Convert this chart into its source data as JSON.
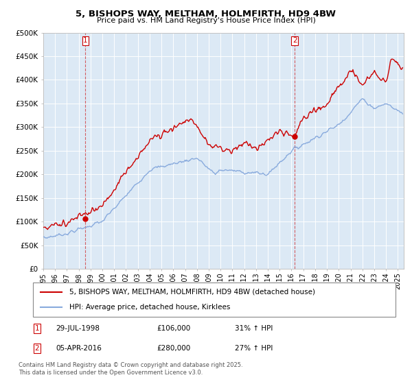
{
  "title_line1": "5, BISHOPS WAY, MELTHAM, HOLMFIRTH, HD9 4BW",
  "title_line2": "Price paid vs. HM Land Registry's House Price Index (HPI)",
  "ylim": [
    0,
    500000
  ],
  "yticks": [
    0,
    50000,
    100000,
    150000,
    200000,
    250000,
    300000,
    350000,
    400000,
    450000,
    500000
  ],
  "ytick_labels": [
    "£0",
    "£50K",
    "£100K",
    "£150K",
    "£200K",
    "£250K",
    "£300K",
    "£350K",
    "£400K",
    "£450K",
    "£500K"
  ],
  "legend_entries": [
    "5, BISHOPS WAY, MELTHAM, HOLMFIRTH, HD9 4BW (detached house)",
    "HPI: Average price, detached house, Kirklees"
  ],
  "legend_colors": [
    "#cc0000",
    "#88aadd"
  ],
  "sale1_date_num": 1998.57,
  "sale1_price": 106000,
  "sale2_date_num": 2016.27,
  "sale2_price": 280000,
  "footer": "Contains HM Land Registry data © Crown copyright and database right 2025.\nThis data is licensed under the Open Government Licence v3.0.",
  "background_color": "#ffffff",
  "plot_bg_color": "#dce9f5",
  "grid_color": "#ffffff",
  "sale_line_color": "#cc0000",
  "hpi_line_color": "#88aadd",
  "price_line_color": "#cc0000",
  "xlim_left": 1995,
  "xlim_right": 2025.5
}
